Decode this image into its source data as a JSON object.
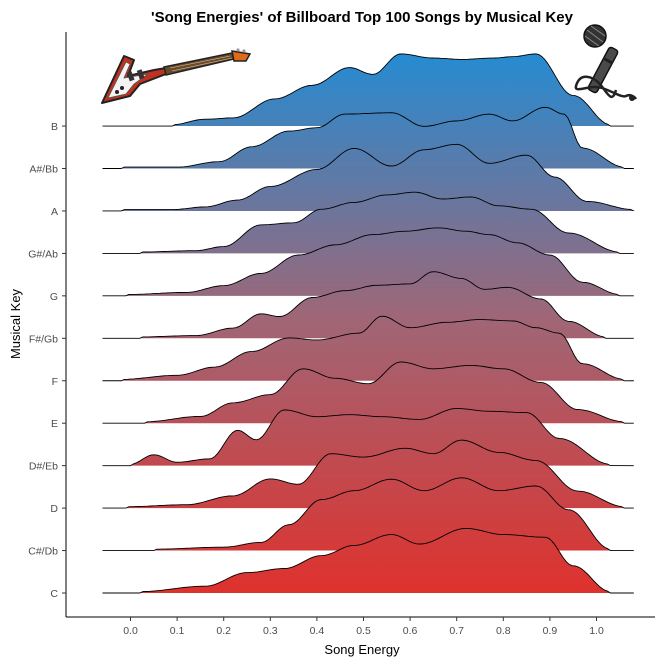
{
  "chart_data": {
    "type": "ridgeline",
    "title": "'Song Energies' of Billboard Top 100 Songs by Musical Key",
    "xlabel": "Song Energy",
    "ylabel": "Musical Key",
    "x_ticks": [
      "0.0",
      "0.1",
      "0.2",
      "0.3",
      "0.4",
      "0.5",
      "0.6",
      "0.7",
      "0.8",
      "0.9",
      "1.0"
    ],
    "xlim": [
      -0.08,
      1.08
    ],
    "grid": false,
    "legend": "none",
    "fill_gradient": {
      "bottom": "#e0302b",
      "top": "#1f8dd6"
    },
    "categories": [
      "C",
      "C#/Db",
      "D",
      "D#/Eb",
      "E",
      "F",
      "F#/Gb",
      "G",
      "G#/Ab",
      "A",
      "A#/Bb",
      "B"
    ],
    "series": [
      {
        "name": "C",
        "peaks": [
          [
            0.02,
            0.02
          ],
          [
            0.16,
            0.1
          ],
          [
            0.25,
            0.3
          ],
          [
            0.33,
            0.36
          ],
          [
            0.41,
            0.55
          ],
          [
            0.48,
            0.7
          ],
          [
            0.56,
            0.86
          ],
          [
            0.62,
            0.72
          ],
          [
            0.72,
            0.95
          ],
          [
            0.8,
            0.86
          ],
          [
            0.89,
            0.82
          ],
          [
            0.95,
            0.4
          ],
          [
            1.03,
            0.02
          ]
        ]
      },
      {
        "name": "C#/Db",
        "peaks": [
          [
            0.05,
            0.02
          ],
          [
            0.2,
            0.05
          ],
          [
            0.28,
            0.12
          ],
          [
            0.34,
            0.38
          ],
          [
            0.41,
            0.75
          ],
          [
            0.48,
            0.88
          ],
          [
            0.56,
            1.05
          ],
          [
            0.63,
            0.88
          ],
          [
            0.71,
            1.07
          ],
          [
            0.79,
            0.88
          ],
          [
            0.87,
            0.95
          ],
          [
            0.94,
            0.6
          ],
          [
            1.03,
            0.02
          ]
        ]
      },
      {
        "name": "D",
        "peaks": [
          [
            -0.01,
            0.02
          ],
          [
            0.12,
            0.05
          ],
          [
            0.22,
            0.18
          ],
          [
            0.3,
            0.43
          ],
          [
            0.36,
            0.35
          ],
          [
            0.43,
            0.8
          ],
          [
            0.5,
            0.75
          ],
          [
            0.59,
            0.88
          ],
          [
            0.65,
            0.8
          ],
          [
            0.71,
            1.0
          ],
          [
            0.79,
            0.82
          ],
          [
            0.87,
            0.7
          ],
          [
            0.96,
            0.25
          ],
          [
            1.06,
            0.02
          ]
        ]
      },
      {
        "name": "D#/Eb",
        "peaks": [
          [
            0.0,
            0.02
          ],
          [
            0.05,
            0.16
          ],
          [
            0.1,
            0.05
          ],
          [
            0.17,
            0.1
          ],
          [
            0.23,
            0.52
          ],
          [
            0.27,
            0.38
          ],
          [
            0.33,
            0.82
          ],
          [
            0.4,
            0.72
          ],
          [
            0.47,
            0.75
          ],
          [
            0.54,
            0.72
          ],
          [
            0.62,
            0.68
          ],
          [
            0.7,
            0.84
          ],
          [
            0.77,
            0.8
          ],
          [
            0.85,
            0.78
          ],
          [
            0.92,
            0.4
          ],
          [
            1.03,
            0.02
          ]
        ]
      },
      {
        "name": "E",
        "peaks": [
          [
            0.03,
            0.02
          ],
          [
            0.15,
            0.1
          ],
          [
            0.22,
            0.3
          ],
          [
            0.3,
            0.42
          ],
          [
            0.37,
            0.8
          ],
          [
            0.44,
            0.66
          ],
          [
            0.51,
            0.58
          ],
          [
            0.58,
            0.9
          ],
          [
            0.65,
            0.8
          ],
          [
            0.73,
            0.85
          ],
          [
            0.8,
            0.8
          ],
          [
            0.88,
            0.6
          ],
          [
            0.96,
            0.2
          ],
          [
            1.06,
            0.02
          ]
        ]
      },
      {
        "name": "F",
        "peaks": [
          [
            -0.02,
            0.02
          ],
          [
            0.1,
            0.08
          ],
          [
            0.18,
            0.2
          ],
          [
            0.26,
            0.43
          ],
          [
            0.34,
            0.63
          ],
          [
            0.4,
            0.6
          ],
          [
            0.49,
            0.7
          ],
          [
            0.54,
            0.95
          ],
          [
            0.6,
            0.78
          ],
          [
            0.68,
            0.86
          ],
          [
            0.75,
            0.9
          ],
          [
            0.82,
            0.88
          ],
          [
            0.87,
            0.78
          ],
          [
            0.92,
            0.7
          ],
          [
            0.97,
            0.25
          ],
          [
            1.06,
            0.02
          ]
        ]
      },
      {
        "name": "F#/Gb",
        "peaks": [
          [
            0.02,
            0.02
          ],
          [
            0.14,
            0.04
          ],
          [
            0.22,
            0.15
          ],
          [
            0.28,
            0.36
          ],
          [
            0.32,
            0.32
          ],
          [
            0.39,
            0.6
          ],
          [
            0.46,
            0.7
          ],
          [
            0.53,
            0.78
          ],
          [
            0.6,
            0.8
          ],
          [
            0.65,
            0.98
          ],
          [
            0.71,
            0.88
          ],
          [
            0.76,
            0.72
          ],
          [
            0.81,
            0.75
          ],
          [
            0.88,
            0.58
          ],
          [
            0.94,
            0.25
          ],
          [
            1.02,
            0.02
          ]
        ]
      },
      {
        "name": "G",
        "peaks": [
          [
            -0.01,
            0.02
          ],
          [
            0.12,
            0.05
          ],
          [
            0.2,
            0.15
          ],
          [
            0.28,
            0.33
          ],
          [
            0.36,
            0.6
          ],
          [
            0.44,
            0.75
          ],
          [
            0.52,
            0.9
          ],
          [
            0.59,
            0.95
          ],
          [
            0.66,
            1.0
          ],
          [
            0.72,
            0.95
          ],
          [
            0.77,
            0.9
          ],
          [
            0.83,
            0.78
          ],
          [
            0.9,
            0.6
          ],
          [
            0.97,
            0.2
          ],
          [
            1.05,
            0.02
          ]
        ]
      },
      {
        "name": "G#/Ab",
        "peaks": [
          [
            0.02,
            0.02
          ],
          [
            0.14,
            0.04
          ],
          [
            0.2,
            0.1
          ],
          [
            0.28,
            0.42
          ],
          [
            0.35,
            0.45
          ],
          [
            0.41,
            0.65
          ],
          [
            0.48,
            0.75
          ],
          [
            0.55,
            0.86
          ],
          [
            0.61,
            0.9
          ],
          [
            0.67,
            0.8
          ],
          [
            0.73,
            0.83
          ],
          [
            0.79,
            0.7
          ],
          [
            0.86,
            0.65
          ],
          [
            0.94,
            0.3
          ],
          [
            1.05,
            0.02
          ]
        ]
      },
      {
        "name": "A",
        "peaks": [
          [
            -0.02,
            0.02
          ],
          [
            0.09,
            0.02
          ],
          [
            0.16,
            0.06
          ],
          [
            0.23,
            0.16
          ],
          [
            0.3,
            0.36
          ],
          [
            0.4,
            0.61
          ],
          [
            0.48,
            0.92
          ],
          [
            0.56,
            0.66
          ],
          [
            0.63,
            0.9
          ],
          [
            0.7,
            0.98
          ],
          [
            0.77,
            0.7
          ],
          [
            0.85,
            0.82
          ],
          [
            0.91,
            0.5
          ],
          [
            0.98,
            0.14
          ],
          [
            1.08,
            0.02
          ]
        ]
      },
      {
        "name": "A#/Bb",
        "peaks": [
          [
            -0.02,
            0.02
          ],
          [
            0.1,
            0.02
          ],
          [
            0.19,
            0.1
          ],
          [
            0.26,
            0.32
          ],
          [
            0.34,
            0.55
          ],
          [
            0.4,
            0.6
          ],
          [
            0.46,
            0.8
          ],
          [
            0.56,
            0.82
          ],
          [
            0.63,
            0.62
          ],
          [
            0.7,
            0.7
          ],
          [
            0.77,
            0.8
          ],
          [
            0.82,
            0.7
          ],
          [
            0.89,
            0.9
          ],
          [
            0.93,
            0.8
          ],
          [
            0.97,
            0.3
          ],
          [
            1.06,
            0.02
          ]
        ]
      },
      {
        "name": "B",
        "peaks": [
          [
            0.09,
            0.02
          ],
          [
            0.16,
            0.1
          ],
          [
            0.22,
            0.12
          ],
          [
            0.31,
            0.4
          ],
          [
            0.39,
            0.6
          ],
          [
            0.47,
            0.86
          ],
          [
            0.52,
            0.76
          ],
          [
            0.58,
            1.06
          ],
          [
            0.65,
            1.0
          ],
          [
            0.71,
            0.98
          ],
          [
            0.78,
            1.0
          ],
          [
            0.82,
            1.02
          ],
          [
            0.87,
            1.06
          ],
          [
            0.95,
            0.45
          ],
          [
            1.03,
            0.02
          ]
        ]
      }
    ]
  },
  "decorations": {
    "left_icon": "electric-guitar-icon",
    "right_icon": "microphone-icon"
  }
}
